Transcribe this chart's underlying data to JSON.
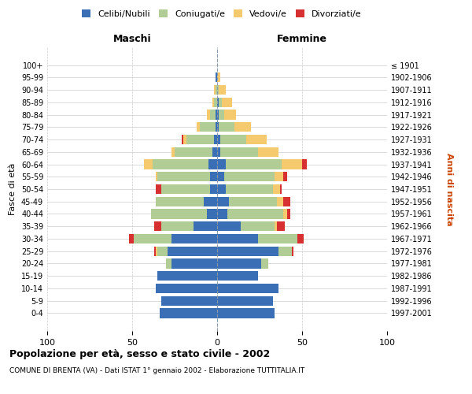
{
  "age_groups": [
    "0-4",
    "5-9",
    "10-14",
    "15-19",
    "20-24",
    "25-29",
    "30-34",
    "35-39",
    "40-44",
    "45-49",
    "50-54",
    "55-59",
    "60-64",
    "65-69",
    "70-74",
    "75-79",
    "80-84",
    "85-89",
    "90-94",
    "95-99",
    "100+"
  ],
  "birth_years": [
    "1997-2001",
    "1992-1996",
    "1987-1991",
    "1982-1986",
    "1977-1981",
    "1972-1976",
    "1967-1971",
    "1962-1966",
    "1957-1961",
    "1952-1956",
    "1947-1951",
    "1942-1946",
    "1937-1941",
    "1932-1936",
    "1927-1931",
    "1922-1926",
    "1917-1921",
    "1912-1916",
    "1907-1911",
    "1902-1906",
    "≤ 1901"
  ],
  "maschi": {
    "celibi": [
      34,
      33,
      36,
      35,
      27,
      29,
      27,
      14,
      6,
      8,
      4,
      4,
      5,
      3,
      2,
      1,
      1,
      0,
      0,
      1,
      0
    ],
    "coniugati": [
      0,
      0,
      0,
      0,
      3,
      6,
      22,
      19,
      33,
      28,
      29,
      31,
      33,
      22,
      16,
      9,
      3,
      2,
      1,
      0,
      0
    ],
    "vedovi": [
      0,
      0,
      0,
      0,
      0,
      1,
      0,
      0,
      0,
      0,
      0,
      1,
      5,
      2,
      2,
      2,
      2,
      1,
      1,
      0,
      0
    ],
    "divorziati": [
      0,
      0,
      0,
      0,
      0,
      1,
      3,
      4,
      0,
      0,
      3,
      0,
      0,
      0,
      1,
      0,
      0,
      0,
      0,
      0,
      0
    ]
  },
  "femmine": {
    "nubili": [
      34,
      33,
      36,
      24,
      26,
      36,
      24,
      14,
      6,
      7,
      5,
      4,
      5,
      2,
      2,
      1,
      1,
      1,
      0,
      0,
      0
    ],
    "coniugate": [
      0,
      0,
      0,
      0,
      4,
      8,
      23,
      20,
      33,
      28,
      28,
      30,
      33,
      22,
      15,
      9,
      3,
      2,
      1,
      0,
      0
    ],
    "vedove": [
      0,
      0,
      0,
      0,
      0,
      0,
      0,
      1,
      2,
      4,
      4,
      5,
      12,
      12,
      12,
      10,
      7,
      6,
      4,
      2,
      0
    ],
    "divorziate": [
      0,
      0,
      0,
      0,
      0,
      1,
      4,
      5,
      2,
      4,
      1,
      2,
      3,
      0,
      0,
      0,
      0,
      0,
      0,
      0,
      0
    ]
  },
  "colors": {
    "celibi": "#3a6fb5",
    "coniugati": "#b2cc96",
    "vedovi": "#f5c96e",
    "divorziati": "#d63030"
  },
  "xlim": 100,
  "title": "Popolazione per età, sesso e stato civile - 2002",
  "subtitle": "COMUNE DI BRENTA (VA) - Dati ISTAT 1° gennaio 2002 - Elaborazione TUTTITALIA.IT",
  "ylabel": "Fasce di età",
  "ylabel_right": "Anni di nascita",
  "xlabel_left": "Maschi",
  "xlabel_right": "Femmine",
  "bg_color": "#ffffff",
  "grid_color": "#cccccc"
}
